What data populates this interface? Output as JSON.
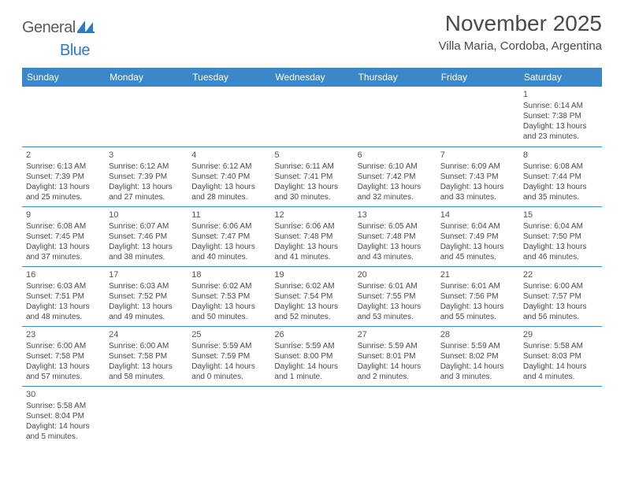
{
  "logo": {
    "part1": "General",
    "part2": "Blue"
  },
  "title": "November 2025",
  "location": "Villa Maria, Cordoba, Argentina",
  "colors": {
    "header_bg": "#3b87c8",
    "header_text": "#ffffff",
    "row_border": "#3b87c8",
    "logo_blue": "#2f7bbf",
    "text": "#4a4a4a"
  },
  "daynames": [
    "Sunday",
    "Monday",
    "Tuesday",
    "Wednesday",
    "Thursday",
    "Friday",
    "Saturday"
  ],
  "weeks": [
    [
      null,
      null,
      null,
      null,
      null,
      null,
      {
        "n": "1",
        "sr": "6:14 AM",
        "ss": "7:38 PM",
        "dl": "13 hours and 23 minutes."
      }
    ],
    [
      {
        "n": "2",
        "sr": "6:13 AM",
        "ss": "7:39 PM",
        "dl": "13 hours and 25 minutes."
      },
      {
        "n": "3",
        "sr": "6:12 AM",
        "ss": "7:39 PM",
        "dl": "13 hours and 27 minutes."
      },
      {
        "n": "4",
        "sr": "6:12 AM",
        "ss": "7:40 PM",
        "dl": "13 hours and 28 minutes."
      },
      {
        "n": "5",
        "sr": "6:11 AM",
        "ss": "7:41 PM",
        "dl": "13 hours and 30 minutes."
      },
      {
        "n": "6",
        "sr": "6:10 AM",
        "ss": "7:42 PM",
        "dl": "13 hours and 32 minutes."
      },
      {
        "n": "7",
        "sr": "6:09 AM",
        "ss": "7:43 PM",
        "dl": "13 hours and 33 minutes."
      },
      {
        "n": "8",
        "sr": "6:08 AM",
        "ss": "7:44 PM",
        "dl": "13 hours and 35 minutes."
      }
    ],
    [
      {
        "n": "9",
        "sr": "6:08 AM",
        "ss": "7:45 PM",
        "dl": "13 hours and 37 minutes."
      },
      {
        "n": "10",
        "sr": "6:07 AM",
        "ss": "7:46 PM",
        "dl": "13 hours and 38 minutes."
      },
      {
        "n": "11",
        "sr": "6:06 AM",
        "ss": "7:47 PM",
        "dl": "13 hours and 40 minutes."
      },
      {
        "n": "12",
        "sr": "6:06 AM",
        "ss": "7:48 PM",
        "dl": "13 hours and 41 minutes."
      },
      {
        "n": "13",
        "sr": "6:05 AM",
        "ss": "7:48 PM",
        "dl": "13 hours and 43 minutes."
      },
      {
        "n": "14",
        "sr": "6:04 AM",
        "ss": "7:49 PM",
        "dl": "13 hours and 45 minutes."
      },
      {
        "n": "15",
        "sr": "6:04 AM",
        "ss": "7:50 PM",
        "dl": "13 hours and 46 minutes."
      }
    ],
    [
      {
        "n": "16",
        "sr": "6:03 AM",
        "ss": "7:51 PM",
        "dl": "13 hours and 48 minutes."
      },
      {
        "n": "17",
        "sr": "6:03 AM",
        "ss": "7:52 PM",
        "dl": "13 hours and 49 minutes."
      },
      {
        "n": "18",
        "sr": "6:02 AM",
        "ss": "7:53 PM",
        "dl": "13 hours and 50 minutes."
      },
      {
        "n": "19",
        "sr": "6:02 AM",
        "ss": "7:54 PM",
        "dl": "13 hours and 52 minutes."
      },
      {
        "n": "20",
        "sr": "6:01 AM",
        "ss": "7:55 PM",
        "dl": "13 hours and 53 minutes."
      },
      {
        "n": "21",
        "sr": "6:01 AM",
        "ss": "7:56 PM",
        "dl": "13 hours and 55 minutes."
      },
      {
        "n": "22",
        "sr": "6:00 AM",
        "ss": "7:57 PM",
        "dl": "13 hours and 56 minutes."
      }
    ],
    [
      {
        "n": "23",
        "sr": "6:00 AM",
        "ss": "7:58 PM",
        "dl": "13 hours and 57 minutes."
      },
      {
        "n": "24",
        "sr": "6:00 AM",
        "ss": "7:58 PM",
        "dl": "13 hours and 58 minutes."
      },
      {
        "n": "25",
        "sr": "5:59 AM",
        "ss": "7:59 PM",
        "dl": "14 hours and 0 minutes."
      },
      {
        "n": "26",
        "sr": "5:59 AM",
        "ss": "8:00 PM",
        "dl": "14 hours and 1 minute."
      },
      {
        "n": "27",
        "sr": "5:59 AM",
        "ss": "8:01 PM",
        "dl": "14 hours and 2 minutes."
      },
      {
        "n": "28",
        "sr": "5:59 AM",
        "ss": "8:02 PM",
        "dl": "14 hours and 3 minutes."
      },
      {
        "n": "29",
        "sr": "5:58 AM",
        "ss": "8:03 PM",
        "dl": "14 hours and 4 minutes."
      }
    ],
    [
      {
        "n": "30",
        "sr": "5:58 AM",
        "ss": "8:04 PM",
        "dl": "14 hours and 5 minutes."
      },
      null,
      null,
      null,
      null,
      null,
      null
    ]
  ],
  "labels": {
    "sunrise": "Sunrise: ",
    "sunset": "Sunset: ",
    "daylight": "Daylight: "
  }
}
